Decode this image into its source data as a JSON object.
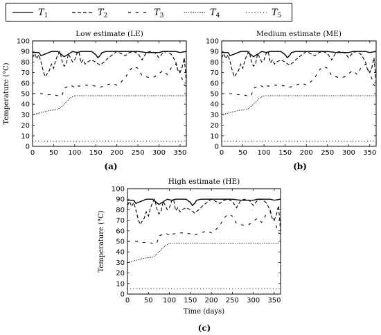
{
  "legend": [
    {
      "symbol": "T",
      "sub": "1",
      "style": "solid"
    },
    {
      "symbol": "T",
      "sub": "2",
      "style": "dashed"
    },
    {
      "symbol": "T",
      "sub": "3",
      "style": "loosedash"
    },
    {
      "symbol": "T",
      "sub": "4",
      "style": "dotted"
    },
    {
      "symbol": "T",
      "sub": "5",
      "style": "sparsedot"
    }
  ],
  "axes": {
    "xticks": [
      0,
      50,
      100,
      150,
      200,
      250,
      300,
      350
    ],
    "yticks": [
      0,
      10,
      20,
      30,
      40,
      50,
      60,
      70,
      80,
      90,
      100
    ],
    "xlim": [
      0,
      365
    ],
    "ylim": [
      0,
      100
    ]
  },
  "chart_data": [
    {
      "type": "line",
      "title": "Low estimate (LE)",
      "tag": "(a)",
      "ylabel": "Temperature (°C)",
      "xlabel": "",
      "series": [
        {
          "name": "T1",
          "x": [
            0,
            15,
            20,
            45,
            60,
            75,
            95,
            105,
            115,
            140,
            150,
            155,
            160,
            165,
            175,
            185,
            200,
            250,
            270,
            275,
            300,
            310,
            340,
            350,
            365
          ],
          "y": [
            89,
            89,
            86,
            90,
            90,
            85,
            90,
            89,
            90,
            90,
            87,
            84,
            86,
            89,
            90,
            90,
            90,
            90,
            89,
            89,
            89,
            90,
            90,
            89,
            90
          ]
        },
        {
          "name": "T2",
          "x": [
            0,
            5,
            10,
            15,
            20,
            25,
            30,
            35,
            40,
            45,
            50,
            55,
            60,
            65,
            70,
            75,
            80,
            85,
            90,
            95,
            100,
            105,
            110,
            115,
            120,
            125,
            130,
            140,
            150,
            160,
            170,
            180,
            190,
            200,
            210,
            220,
            230,
            240,
            250,
            260,
            270,
            280,
            290,
            300,
            310,
            320,
            330,
            340,
            345,
            350,
            355,
            360,
            365
          ],
          "y": [
            84,
            88,
            83,
            87,
            80,
            72,
            66,
            69,
            72,
            78,
            74,
            82,
            87,
            90,
            81,
            76,
            78,
            88,
            84,
            80,
            82,
            88,
            90,
            79,
            82,
            78,
            80,
            82,
            80,
            77,
            80,
            84,
            87,
            90,
            88,
            86,
            89,
            90,
            88,
            82,
            89,
            90,
            89,
            84,
            89,
            90,
            87,
            80,
            72,
            70,
            75,
            84,
            60
          ]
        },
        {
          "name": "T3",
          "x": [
            0,
            20,
            35,
            50,
            60,
            70,
            75,
            90,
            100,
            105,
            110,
            120,
            140,
            160,
            175,
            190,
            200,
            210,
            220,
            230,
            240,
            250,
            260,
            270,
            280,
            290,
            300,
            310,
            320,
            330,
            340,
            350,
            360,
            365
          ],
          "y": [
            50,
            50,
            49,
            49,
            48,
            48,
            55,
            58,
            56,
            58,
            57,
            58,
            58,
            56,
            58,
            60,
            58,
            61,
            65,
            72,
            76,
            74,
            67,
            66,
            65,
            66,
            69,
            72,
            68,
            75,
            78,
            70,
            58,
            57
          ]
        },
        {
          "name": "T4",
          "x": [
            0,
            20,
            40,
            60,
            70,
            80,
            90,
            100,
            105,
            150,
            200,
            250,
            300,
            365
          ],
          "y": [
            30,
            32,
            34,
            35,
            38,
            42,
            46,
            48,
            48,
            48,
            48,
            48,
            48,
            48
          ]
        },
        {
          "name": "T5",
          "x": [
            0,
            365
          ],
          "y": [
            5,
            5
          ]
        }
      ]
    },
    {
      "type": "line",
      "title": "Medium estimate (ME)",
      "tag": "(b)",
      "ylabel": "",
      "xlabel": "",
      "series": [
        {
          "name": "T1",
          "x": [
            0,
            15,
            20,
            45,
            60,
            75,
            95,
            105,
            115,
            140,
            150,
            155,
            160,
            165,
            175,
            185,
            200,
            250,
            270,
            275,
            300,
            310,
            340,
            350,
            365
          ],
          "y": [
            89,
            89,
            86,
            90,
            90,
            85,
            90,
            89,
            90,
            90,
            87,
            84,
            86,
            89,
            90,
            90,
            90,
            90,
            89,
            89,
            89,
            90,
            90,
            89,
            90
          ]
        },
        {
          "name": "T2",
          "x": [
            0,
            5,
            10,
            15,
            20,
            25,
            30,
            35,
            40,
            45,
            50,
            55,
            60,
            65,
            70,
            75,
            80,
            85,
            90,
            95,
            100,
            105,
            110,
            115,
            120,
            125,
            130,
            140,
            150,
            160,
            170,
            180,
            190,
            200,
            210,
            220,
            230,
            240,
            250,
            260,
            270,
            280,
            290,
            300,
            310,
            320,
            330,
            340,
            345,
            350,
            355,
            360,
            365
          ],
          "y": [
            84,
            88,
            83,
            87,
            80,
            72,
            66,
            69,
            72,
            78,
            74,
            82,
            87,
            90,
            81,
            76,
            78,
            88,
            84,
            80,
            82,
            88,
            90,
            79,
            82,
            78,
            80,
            82,
            80,
            77,
            80,
            84,
            87,
            90,
            88,
            86,
            89,
            90,
            88,
            82,
            89,
            90,
            89,
            84,
            89,
            90,
            87,
            80,
            72,
            70,
            75,
            84,
            60
          ]
        },
        {
          "name": "T3",
          "x": [
            0,
            20,
            35,
            50,
            60,
            70,
            75,
            90,
            100,
            105,
            110,
            120,
            140,
            160,
            175,
            190,
            200,
            210,
            220,
            230,
            240,
            250,
            260,
            270,
            280,
            290,
            300,
            310,
            320,
            330,
            340,
            350,
            360,
            365
          ],
          "y": [
            50,
            50,
            49,
            49,
            48,
            48,
            55,
            58,
            56,
            58,
            57,
            58,
            58,
            56,
            58,
            60,
            58,
            61,
            65,
            72,
            76,
            74,
            67,
            66,
            65,
            66,
            69,
            72,
            68,
            75,
            78,
            70,
            58,
            57
          ]
        },
        {
          "name": "T4",
          "x": [
            0,
            20,
            40,
            60,
            70,
            80,
            90,
            100,
            105,
            150,
            200,
            250,
            300,
            365
          ],
          "y": [
            30,
            32,
            34,
            35,
            38,
            42,
            46,
            48,
            48,
            48,
            48,
            48,
            48,
            48
          ]
        },
        {
          "name": "T5",
          "x": [
            0,
            365
          ],
          "y": [
            5,
            5
          ]
        }
      ]
    },
    {
      "type": "line",
      "title": "High estimate (HE)",
      "tag": "(c)",
      "ylabel": "Temperature (°C)",
      "xlabel": "Time (days)",
      "series": [
        {
          "name": "T1",
          "x": [
            0,
            15,
            20,
            45,
            60,
            75,
            95,
            105,
            115,
            140,
            150,
            155,
            160,
            165,
            175,
            185,
            200,
            250,
            270,
            275,
            300,
            310,
            340,
            350,
            365
          ],
          "y": [
            89,
            89,
            86,
            90,
            90,
            85,
            90,
            89,
            90,
            90,
            87,
            84,
            86,
            89,
            90,
            90,
            90,
            90,
            89,
            89,
            89,
            90,
            90,
            89,
            90
          ]
        },
        {
          "name": "T2",
          "x": [
            0,
            5,
            10,
            15,
            20,
            25,
            30,
            35,
            40,
            45,
            50,
            55,
            60,
            65,
            70,
            75,
            80,
            85,
            90,
            95,
            100,
            105,
            110,
            115,
            120,
            125,
            130,
            140,
            150,
            160,
            170,
            180,
            190,
            200,
            210,
            220,
            230,
            240,
            250,
            260,
            270,
            280,
            290,
            300,
            310,
            320,
            330,
            340,
            345,
            350,
            355,
            360,
            365
          ],
          "y": [
            84,
            88,
            83,
            87,
            80,
            72,
            66,
            69,
            72,
            78,
            74,
            82,
            87,
            90,
            81,
            76,
            78,
            88,
            84,
            80,
            82,
            88,
            90,
            79,
            82,
            78,
            80,
            82,
            80,
            77,
            80,
            84,
            87,
            90,
            88,
            86,
            89,
            90,
            88,
            82,
            89,
            90,
            89,
            84,
            89,
            90,
            87,
            80,
            72,
            70,
            75,
            84,
            60
          ]
        },
        {
          "name": "T3",
          "x": [
            0,
            20,
            35,
            50,
            60,
            70,
            75,
            90,
            100,
            105,
            110,
            120,
            140,
            160,
            175,
            190,
            200,
            210,
            220,
            230,
            240,
            250,
            260,
            270,
            280,
            290,
            300,
            310,
            320,
            330,
            340,
            350,
            360,
            365
          ],
          "y": [
            50,
            50,
            49,
            49,
            48,
            48,
            55,
            58,
            56,
            58,
            57,
            58,
            58,
            56,
            58,
            60,
            58,
            61,
            65,
            72,
            76,
            74,
            67,
            66,
            65,
            66,
            69,
            72,
            68,
            75,
            78,
            70,
            58,
            57
          ]
        },
        {
          "name": "T4",
          "x": [
            0,
            20,
            40,
            60,
            70,
            80,
            90,
            100,
            105,
            150,
            200,
            250,
            300,
            365
          ],
          "y": [
            30,
            32,
            34,
            35,
            38,
            42,
            46,
            48,
            48,
            48,
            48,
            48,
            48,
            48
          ]
        },
        {
          "name": "T5",
          "x": [
            0,
            365
          ],
          "y": [
            5,
            5
          ]
        }
      ]
    }
  ]
}
